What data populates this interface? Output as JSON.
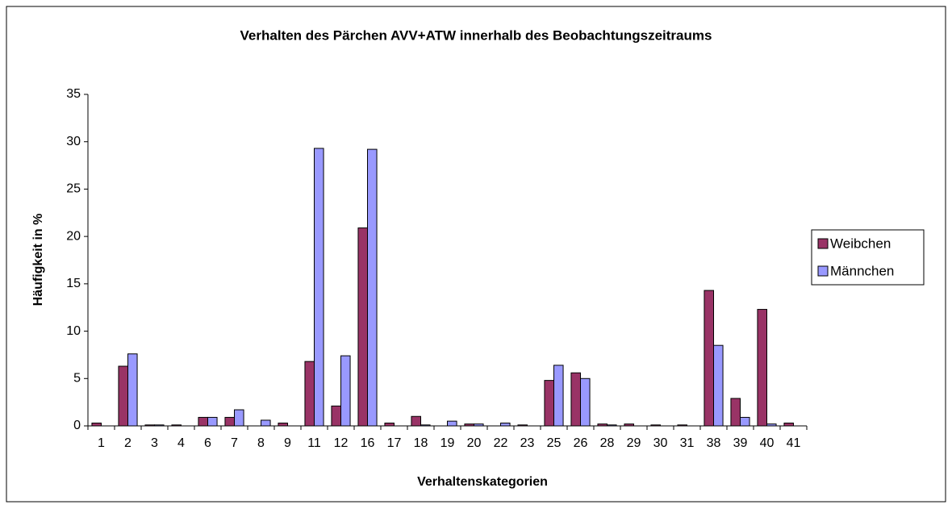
{
  "chart_data": {
    "type": "bar",
    "title": "Verhalten des Pärchen AVV+ATW innerhalb des Beobachtungszeitraums",
    "x_label": "Verhaltenskategorien",
    "y_label": "Häufigkeit in %",
    "categories": [
      "1",
      "2",
      "3",
      "4",
      "6",
      "7",
      "8",
      "9",
      "11",
      "12",
      "16",
      "17",
      "18",
      "19",
      "20",
      "22",
      "23",
      "25",
      "26",
      "28",
      "29",
      "30",
      "31",
      "38",
      "39",
      "40",
      "41"
    ],
    "series": [
      {
        "name": "Weibchen",
        "color": "#993366",
        "values": [
          0.3,
          6.3,
          0.1,
          0.1,
          0.9,
          0.9,
          0,
          0.3,
          6.8,
          2.1,
          20.9,
          0.3,
          1.0,
          0,
          0.2,
          0,
          0.1,
          4.8,
          5.6,
          0.2,
          0.2,
          0.1,
          0.1,
          14.3,
          2.9,
          12.3,
          0.3
        ]
      },
      {
        "name": "Männchen",
        "color": "#9999ff",
        "values": [
          0,
          7.6,
          0.1,
          0,
          0.9,
          1.7,
          0.6,
          0,
          29.3,
          7.4,
          29.2,
          0,
          0.1,
          0.5,
          0.2,
          0.3,
          0,
          6.4,
          5.0,
          0.1,
          0,
          0,
          0,
          8.5,
          0.9,
          0.2,
          0
        ]
      }
    ],
    "ylim": [
      0,
      35
    ],
    "yticks": [
      0,
      5,
      10,
      15,
      20,
      25,
      30,
      35
    ],
    "legend": "right"
  }
}
